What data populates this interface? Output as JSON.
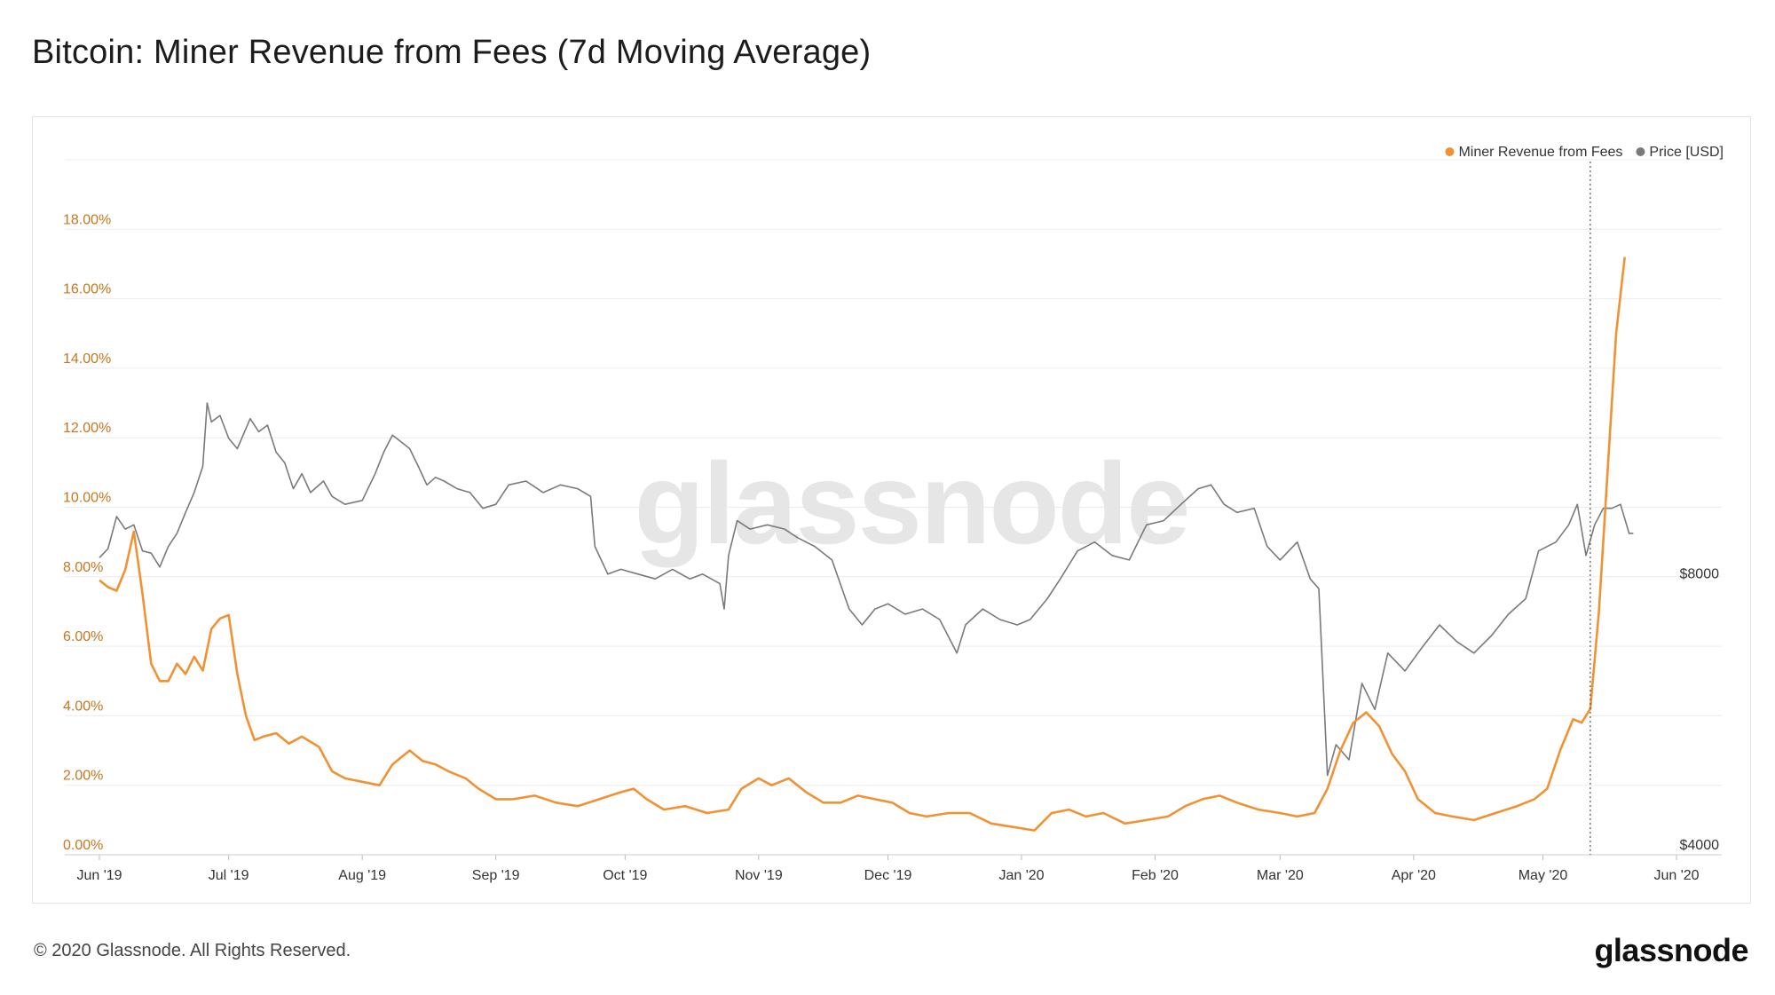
{
  "page": {
    "title": "Bitcoin: Miner Revenue from Fees (7d Moving Average)",
    "copyright": "© 2020 Glassnode. All Rights Reserved.",
    "brand": "glassnode",
    "watermark": "glassnode"
  },
  "colors": {
    "fees": "#f09234",
    "price": "#7a7a7a",
    "grid": "#ececec",
    "axis_left": "#c8761d"
  },
  "chart_data": {
    "type": "line",
    "title": "Bitcoin: Miner Revenue from Fees (7d Moving Average)",
    "legend_placement": "top-right",
    "grid": true,
    "x_ticks": [
      "Jun '19",
      "Jul '19",
      "Aug '19",
      "Sep '19",
      "Oct '19",
      "Nov '19",
      "Dec '19",
      "Jan '20",
      "Feb '20",
      "Mar '20",
      "Apr '20",
      "May '20",
      "Jun '20"
    ],
    "y_left": {
      "ticks": [
        "0.00%",
        "2.00%",
        "4.00%",
        "6.00%",
        "8.00%",
        "10.00%",
        "12.00%",
        "14.00%",
        "16.00%",
        "18.00%"
      ],
      "range": [
        0,
        20
      ]
    },
    "y_right": {
      "ticks": [
        "$4000",
        "$8000"
      ],
      "scale": "log"
    },
    "series": [
      {
        "name": "Miner Revenue from Fees",
        "axis": "left",
        "unit": "%",
        "points": [
          [
            "2019-06-01",
            7.9
          ],
          [
            "2019-06-03",
            7.7
          ],
          [
            "2019-06-05",
            7.6
          ],
          [
            "2019-06-07",
            8.2
          ],
          [
            "2019-06-09",
            9.3
          ],
          [
            "2019-06-11",
            7.5
          ],
          [
            "2019-06-13",
            5.5
          ],
          [
            "2019-06-15",
            5.0
          ],
          [
            "2019-06-17",
            5.0
          ],
          [
            "2019-06-19",
            5.5
          ],
          [
            "2019-06-21",
            5.2
          ],
          [
            "2019-06-23",
            5.7
          ],
          [
            "2019-06-25",
            5.3
          ],
          [
            "2019-06-27",
            6.5
          ],
          [
            "2019-06-29",
            6.8
          ],
          [
            "2019-07-01",
            6.9
          ],
          [
            "2019-07-03",
            5.2
          ],
          [
            "2019-07-05",
            4.0
          ],
          [
            "2019-07-07",
            3.3
          ],
          [
            "2019-07-09",
            3.4
          ],
          [
            "2019-07-12",
            3.5
          ],
          [
            "2019-07-15",
            3.2
          ],
          [
            "2019-07-18",
            3.4
          ],
          [
            "2019-07-22",
            3.1
          ],
          [
            "2019-07-25",
            2.4
          ],
          [
            "2019-07-28",
            2.2
          ],
          [
            "2019-08-01",
            2.1
          ],
          [
            "2019-08-05",
            2.0
          ],
          [
            "2019-08-08",
            2.6
          ],
          [
            "2019-08-12",
            3.0
          ],
          [
            "2019-08-15",
            2.7
          ],
          [
            "2019-08-18",
            2.6
          ],
          [
            "2019-08-21",
            2.4
          ],
          [
            "2019-08-25",
            2.2
          ],
          [
            "2019-08-28",
            1.9
          ],
          [
            "2019-09-01",
            1.6
          ],
          [
            "2019-09-05",
            1.6
          ],
          [
            "2019-09-10",
            1.7
          ],
          [
            "2019-09-15",
            1.5
          ],
          [
            "2019-09-20",
            1.4
          ],
          [
            "2019-09-25",
            1.6
          ],
          [
            "2019-09-30",
            1.8
          ],
          [
            "2019-10-03",
            1.9
          ],
          [
            "2019-10-06",
            1.6
          ],
          [
            "2019-10-10",
            1.3
          ],
          [
            "2019-10-15",
            1.4
          ],
          [
            "2019-10-20",
            1.2
          ],
          [
            "2019-10-25",
            1.3
          ],
          [
            "2019-10-28",
            1.9
          ],
          [
            "2019-11-01",
            2.2
          ],
          [
            "2019-11-04",
            2.0
          ],
          [
            "2019-11-08",
            2.2
          ],
          [
            "2019-11-12",
            1.8
          ],
          [
            "2019-11-16",
            1.5
          ],
          [
            "2019-11-20",
            1.5
          ],
          [
            "2019-11-24",
            1.7
          ],
          [
            "2019-11-28",
            1.6
          ],
          [
            "2019-12-02",
            1.5
          ],
          [
            "2019-12-06",
            1.2
          ],
          [
            "2019-12-10",
            1.1
          ],
          [
            "2019-12-15",
            1.2
          ],
          [
            "2019-12-20",
            1.2
          ],
          [
            "2019-12-25",
            0.9
          ],
          [
            "2019-12-30",
            0.8
          ],
          [
            "2020-01-04",
            0.7
          ],
          [
            "2020-01-08",
            1.2
          ],
          [
            "2020-01-12",
            1.3
          ],
          [
            "2020-01-16",
            1.1
          ],
          [
            "2020-01-20",
            1.2
          ],
          [
            "2020-01-25",
            0.9
          ],
          [
            "2020-01-30",
            1.0
          ],
          [
            "2020-02-04",
            1.1
          ],
          [
            "2020-02-08",
            1.4
          ],
          [
            "2020-02-12",
            1.6
          ],
          [
            "2020-02-16",
            1.7
          ],
          [
            "2020-02-20",
            1.5
          ],
          [
            "2020-02-25",
            1.3
          ],
          [
            "2020-03-01",
            1.2
          ],
          [
            "2020-03-05",
            1.1
          ],
          [
            "2020-03-09",
            1.2
          ],
          [
            "2020-03-12",
            1.9
          ],
          [
            "2020-03-15",
            3.0
          ],
          [
            "2020-03-18",
            3.8
          ],
          [
            "2020-03-21",
            4.1
          ],
          [
            "2020-03-24",
            3.7
          ],
          [
            "2020-03-27",
            2.9
          ],
          [
            "2020-03-30",
            2.4
          ],
          [
            "2020-04-02",
            1.6
          ],
          [
            "2020-04-06",
            1.2
          ],
          [
            "2020-04-10",
            1.1
          ],
          [
            "2020-04-15",
            1.0
          ],
          [
            "2020-04-20",
            1.2
          ],
          [
            "2020-04-25",
            1.4
          ],
          [
            "2020-04-29",
            1.6
          ],
          [
            "2020-05-02",
            1.9
          ],
          [
            "2020-05-05",
            3.0
          ],
          [
            "2020-05-08",
            3.9
          ],
          [
            "2020-05-10",
            3.8
          ],
          [
            "2020-05-12",
            4.2
          ],
          [
            "2020-05-14",
            7.0
          ],
          [
            "2020-05-16",
            11.0
          ],
          [
            "2020-05-18",
            15.0
          ],
          [
            "2020-05-20",
            17.2
          ]
        ]
      },
      {
        "name": "Price [USD]",
        "axis": "right",
        "unit": "USD",
        "points": [
          [
            "2019-06-01",
            8550
          ],
          [
            "2019-06-03",
            8750
          ],
          [
            "2019-06-05",
            9500
          ],
          [
            "2019-06-07",
            9200
          ],
          [
            "2019-06-09",
            9300
          ],
          [
            "2019-06-11",
            8700
          ],
          [
            "2019-06-13",
            8650
          ],
          [
            "2019-06-15",
            8350
          ],
          [
            "2019-06-17",
            8800
          ],
          [
            "2019-06-19",
            9100
          ],
          [
            "2019-06-21",
            9600
          ],
          [
            "2019-06-23",
            10100
          ],
          [
            "2019-06-25",
            10800
          ],
          [
            "2019-06-26",
            12700
          ],
          [
            "2019-06-27",
            12100
          ],
          [
            "2019-06-29",
            12300
          ],
          [
            "2019-07-01",
            11600
          ],
          [
            "2019-07-03",
            11300
          ],
          [
            "2019-07-06",
            12200
          ],
          [
            "2019-07-08",
            11800
          ],
          [
            "2019-07-10",
            12000
          ],
          [
            "2019-07-12",
            11200
          ],
          [
            "2019-07-14",
            10900
          ],
          [
            "2019-07-16",
            10200
          ],
          [
            "2019-07-18",
            10600
          ],
          [
            "2019-07-20",
            10100
          ],
          [
            "2019-07-23",
            10400
          ],
          [
            "2019-07-25",
            10000
          ],
          [
            "2019-07-28",
            9800
          ],
          [
            "2019-08-01",
            9900
          ],
          [
            "2019-08-04",
            10600
          ],
          [
            "2019-08-06",
            11200
          ],
          [
            "2019-08-08",
            11700
          ],
          [
            "2019-08-10",
            11500
          ],
          [
            "2019-08-12",
            11300
          ],
          [
            "2019-08-14",
            10800
          ],
          [
            "2019-08-16",
            10300
          ],
          [
            "2019-08-18",
            10500
          ],
          [
            "2019-08-20",
            10400
          ],
          [
            "2019-08-23",
            10200
          ],
          [
            "2019-08-26",
            10100
          ],
          [
            "2019-08-29",
            9700
          ],
          [
            "2019-09-01",
            9800
          ],
          [
            "2019-09-04",
            10300
          ],
          [
            "2019-09-08",
            10400
          ],
          [
            "2019-09-12",
            10100
          ],
          [
            "2019-09-16",
            10300
          ],
          [
            "2019-09-20",
            10200
          ],
          [
            "2019-09-23",
            10000
          ],
          [
            "2019-09-24",
            8800
          ],
          [
            "2019-09-27",
            8200
          ],
          [
            "2019-09-30",
            8300
          ],
          [
            "2019-10-04",
            8200
          ],
          [
            "2019-10-08",
            8100
          ],
          [
            "2019-10-12",
            8300
          ],
          [
            "2019-10-16",
            8100
          ],
          [
            "2019-10-19",
            8200
          ],
          [
            "2019-10-23",
            8000
          ],
          [
            "2019-10-24",
            7500
          ],
          [
            "2019-10-25",
            8600
          ],
          [
            "2019-10-27",
            9400
          ],
          [
            "2019-10-30",
            9200
          ],
          [
            "2019-11-03",
            9300
          ],
          [
            "2019-11-07",
            9200
          ],
          [
            "2019-11-10",
            9000
          ],
          [
            "2019-11-14",
            8800
          ],
          [
            "2019-11-18",
            8500
          ],
          [
            "2019-11-22",
            7500
          ],
          [
            "2019-11-25",
            7200
          ],
          [
            "2019-11-28",
            7500
          ],
          [
            "2019-12-01",
            7600
          ],
          [
            "2019-12-05",
            7400
          ],
          [
            "2019-12-09",
            7500
          ],
          [
            "2019-12-13",
            7300
          ],
          [
            "2019-12-17",
            6700
          ],
          [
            "2019-12-19",
            7200
          ],
          [
            "2019-12-23",
            7500
          ],
          [
            "2019-12-27",
            7300
          ],
          [
            "2019-12-31",
            7200
          ],
          [
            "2020-01-03",
            7300
          ],
          [
            "2020-01-07",
            7700
          ],
          [
            "2020-01-10",
            8100
          ],
          [
            "2020-01-14",
            8700
          ],
          [
            "2020-01-18",
            8900
          ],
          [
            "2020-01-22",
            8600
          ],
          [
            "2020-01-26",
            8500
          ],
          [
            "2020-01-30",
            9300
          ],
          [
            "2020-02-03",
            9400
          ],
          [
            "2020-02-07",
            9800
          ],
          [
            "2020-02-11",
            10200
          ],
          [
            "2020-02-14",
            10300
          ],
          [
            "2020-02-17",
            9800
          ],
          [
            "2020-02-20",
            9600
          ],
          [
            "2020-02-24",
            9700
          ],
          [
            "2020-02-27",
            8800
          ],
          [
            "2020-03-01",
            8500
          ],
          [
            "2020-03-05",
            8900
          ],
          [
            "2020-03-08",
            8100
          ],
          [
            "2020-03-10",
            7900
          ],
          [
            "2020-03-12",
            4900
          ],
          [
            "2020-03-14",
            5300
          ],
          [
            "2020-03-17",
            5100
          ],
          [
            "2020-03-20",
            6200
          ],
          [
            "2020-03-23",
            5800
          ],
          [
            "2020-03-26",
            6700
          ],
          [
            "2020-03-30",
            6400
          ],
          [
            "2020-04-03",
            6800
          ],
          [
            "2020-04-07",
            7200
          ],
          [
            "2020-04-11",
            6900
          ],
          [
            "2020-04-15",
            6700
          ],
          [
            "2020-04-19",
            7000
          ],
          [
            "2020-04-23",
            7400
          ],
          [
            "2020-04-27",
            7700
          ],
          [
            "2020-04-30",
            8700
          ],
          [
            "2020-05-04",
            8900
          ],
          [
            "2020-05-07",
            9300
          ],
          [
            "2020-05-09",
            9800
          ],
          [
            "2020-05-11",
            8600
          ],
          [
            "2020-05-13",
            9300
          ],
          [
            "2020-05-15",
            9700
          ],
          [
            "2020-05-17",
            9700
          ],
          [
            "2020-05-19",
            9800
          ],
          [
            "2020-05-21",
            9100
          ],
          [
            "2020-05-22",
            9100
          ]
        ]
      }
    ],
    "cursor_date": "2020-05-12"
  }
}
